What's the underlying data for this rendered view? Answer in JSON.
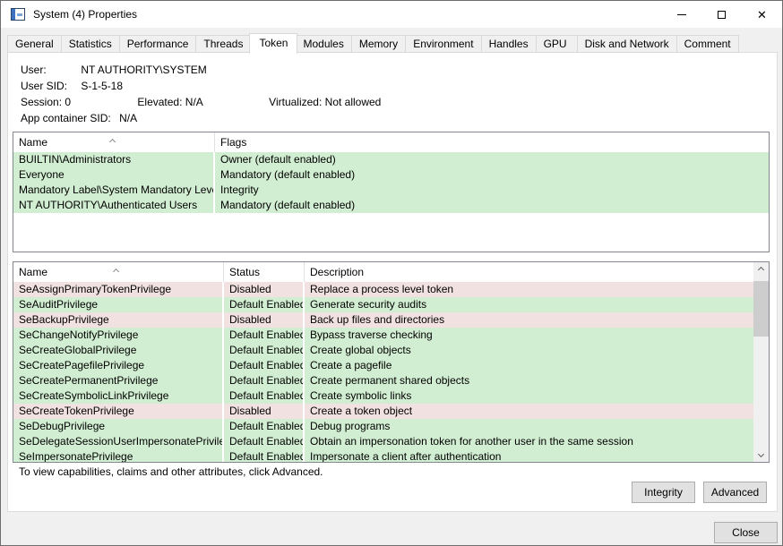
{
  "window": {
    "title": "System (4) Properties",
    "controls": {
      "minimize": "minimize",
      "maximize": "maximize",
      "close": "✕"
    }
  },
  "tabs": [
    {
      "label": "General",
      "active": false
    },
    {
      "label": "Statistics",
      "active": false
    },
    {
      "label": "Performance",
      "active": false
    },
    {
      "label": "Threads",
      "active": false
    },
    {
      "label": "Token",
      "active": true
    },
    {
      "label": "Modules",
      "active": false
    },
    {
      "label": "Memory",
      "active": false
    },
    {
      "label": "Environment",
      "active": false
    },
    {
      "label": "Handles",
      "active": false
    },
    {
      "label": "GPU",
      "active": false
    },
    {
      "label": "Disk and Network",
      "active": false
    },
    {
      "label": "Comment",
      "active": false
    }
  ],
  "info": {
    "user_label": "User:",
    "user_value": "NT AUTHORITY\\SYSTEM",
    "user_sid_label": "User SID:",
    "user_sid_value": "S-1-5-18",
    "session_label": "Session:",
    "session_value": "0",
    "elevated_label": "Elevated:",
    "elevated_value": "N/A",
    "virtualized_label": "Virtualized:",
    "virtualized_value": "Not allowed",
    "app_container_label": "App container SID:",
    "app_container_value": "N/A"
  },
  "groups_table": {
    "columns": {
      "name": "Name",
      "flags": "Flags"
    },
    "sorted_column": "Name",
    "sort_direction": "ascending",
    "rows": [
      {
        "name": "BUILTIN\\Administrators",
        "flags": "Owner (default enabled)",
        "highlight": "green"
      },
      {
        "name": "Everyone",
        "flags": "Mandatory (default enabled)",
        "highlight": "green"
      },
      {
        "name": "Mandatory Label\\System Mandatory Level",
        "flags": "Integrity",
        "highlight": "green"
      },
      {
        "name": "NT AUTHORITY\\Authenticated Users",
        "flags": "Mandatory (default enabled)",
        "highlight": "green"
      }
    ]
  },
  "privileges_table": {
    "columns": {
      "name": "Name",
      "status": "Status",
      "description": "Description"
    },
    "sorted_column": "Name",
    "sort_direction": "ascending",
    "rows": [
      {
        "name": "SeAssignPrimaryTokenPrivilege",
        "status": "Disabled",
        "description": "Replace a process level token",
        "highlight": "pink"
      },
      {
        "name": "SeAuditPrivilege",
        "status": "Default Enabled",
        "description": "Generate security audits",
        "highlight": "green"
      },
      {
        "name": "SeBackupPrivilege",
        "status": "Disabled",
        "description": "Back up files and directories",
        "highlight": "pink"
      },
      {
        "name": "SeChangeNotifyPrivilege",
        "status": "Default Enabled",
        "description": "Bypass traverse checking",
        "highlight": "green"
      },
      {
        "name": "SeCreateGlobalPrivilege",
        "status": "Default Enabled",
        "description": "Create global objects",
        "highlight": "green"
      },
      {
        "name": "SeCreatePagefilePrivilege",
        "status": "Default Enabled",
        "description": "Create a pagefile",
        "highlight": "green"
      },
      {
        "name": "SeCreatePermanentPrivilege",
        "status": "Default Enabled",
        "description": "Create permanent shared objects",
        "highlight": "green"
      },
      {
        "name": "SeCreateSymbolicLinkPrivilege",
        "status": "Default Enabled",
        "description": "Create symbolic links",
        "highlight": "green"
      },
      {
        "name": "SeCreateTokenPrivilege",
        "status": "Disabled",
        "description": "Create a token object",
        "highlight": "pink"
      },
      {
        "name": "SeDebugPrivilege",
        "status": "Default Enabled",
        "description": "Debug programs",
        "highlight": "green"
      },
      {
        "name": "SeDelegateSessionUserImpersonatePrivilege",
        "status": "Default Enabled",
        "description": "Obtain an impersonation token for another user in the same session",
        "highlight": "green"
      },
      {
        "name": "SeImpersonatePrivilege",
        "status": "Default Enabled",
        "description": "Impersonate a client after authentication",
        "highlight": "green"
      }
    ]
  },
  "footer": {
    "note": "To view capabilities, claims and other attributes, click Advanced.",
    "integrity_button": "Integrity",
    "advanced_button": "Advanced",
    "close_button": "Close"
  },
  "colors": {
    "green_row": "#d2eed2",
    "pink_row": "#f1e1e1",
    "dialog_bg": "#f0f0f0",
    "page_bg": "#ffffff",
    "table_border": "#828790",
    "button_bg": "#e1e1e1",
    "button_border": "#adadad",
    "scroll_thumb": "#cdcdcd"
  }
}
